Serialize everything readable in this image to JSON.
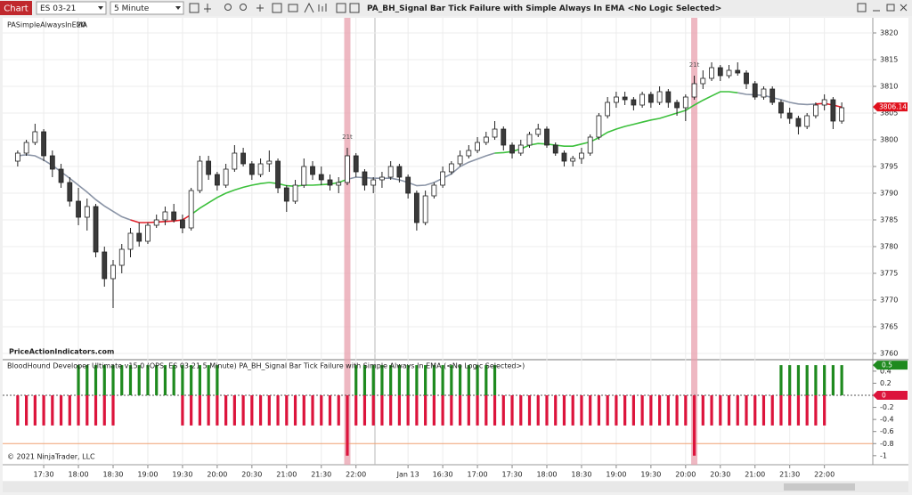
{
  "toolbar": {
    "button": "Chart",
    "instrument": "ES 03-21",
    "interval": "5 Minute",
    "chart_title": "PA_BH_Signal Bar Tick Failure with Simple Always In EMA  <No Logic Selected>"
  },
  "x_axis": {
    "xlim": [
      -0.5,
      95.5
    ],
    "xticks": [
      {
        "value": 3,
        "label": "17:30"
      },
      {
        "value": 7,
        "label": "18:00"
      },
      {
        "value": 11,
        "label": "18:30"
      },
      {
        "value": 15,
        "label": "19:00"
      },
      {
        "value": 19,
        "label": "19:30"
      },
      {
        "value": 23,
        "label": "20:00"
      },
      {
        "value": 27,
        "label": "20:30"
      },
      {
        "value": 31,
        "label": "21:00"
      },
      {
        "value": 35,
        "label": "21:30"
      },
      {
        "value": 39,
        "label": "22:00"
      },
      {
        "value": 45,
        "label": "Jan 13"
      },
      {
        "value": 49,
        "label": "16:30"
      },
      {
        "value": 53,
        "label": "17:00"
      },
      {
        "value": 57,
        "label": "17:30"
      },
      {
        "value": 61,
        "label": "18:00"
      },
      {
        "value": 65,
        "label": "18:30"
      },
      {
        "value": 69,
        "label": "19:00"
      },
      {
        "value": 73,
        "label": "19:30"
      },
      {
        "value": 77,
        "label": "20:00"
      },
      {
        "value": 81,
        "label": "20:30"
      },
      {
        "value": 85,
        "label": "21:00"
      },
      {
        "value": 89,
        "label": "21:30"
      },
      {
        "value": 93,
        "label": "22:00"
      }
    ]
  },
  "chart_data": [
    {
      "type": "candlestick",
      "indicator": "PASimpleAlwaysInEMA",
      "period": "20",
      "watermark": "PriceActionIndicators.com",
      "ylim": [
        3759,
        3822.5
      ],
      "yticks": [
        3760,
        3765,
        3770,
        3775,
        3780,
        3785,
        3790,
        3795,
        3800,
        3805,
        3810,
        3815,
        3820
      ],
      "grid": true,
      "last_price": 3806.14,
      "last_price_color": "#e0101c",
      "up_color": "#ffffff",
      "down_color": "#3a3a3a",
      "candles": [
        [
          3796,
          3798,
          3795,
          3797.5
        ],
        [
          3797.5,
          3800,
          3797,
          3799.5
        ],
        [
          3799.5,
          3803,
          3799,
          3801.5
        ],
        [
          3801.5,
          3802,
          3796,
          3797
        ],
        [
          3797,
          3798,
          3793,
          3794.5
        ],
        [
          3794.5,
          3795.5,
          3791,
          3792
        ],
        [
          3792,
          3793,
          3787.5,
          3788.5
        ],
        [
          3788.5,
          3791,
          3784,
          3785.5
        ],
        [
          3785.5,
          3789,
          3783,
          3787.5
        ],
        [
          3787.5,
          3788,
          3778,
          3779
        ],
        [
          3779,
          3780,
          3772.5,
          3774
        ],
        [
          3774,
          3777.5,
          3768.5,
          3776.5
        ],
        [
          3776.5,
          3780.5,
          3775,
          3779.5
        ],
        [
          3779.5,
          3783.5,
          3778,
          3782.5
        ],
        [
          3782.5,
          3784.5,
          3780,
          3781
        ],
        [
          3781,
          3784.5,
          3780.5,
          3784
        ],
        [
          3784,
          3786,
          3783.5,
          3785
        ],
        [
          3785,
          3787.5,
          3784,
          3786.5
        ],
        [
          3786.5,
          3788,
          3784.5,
          3785
        ],
        [
          3785,
          3786,
          3782.5,
          3783.5
        ],
        [
          3783.5,
          3791,
          3783,
          3790.5
        ],
        [
          3790.5,
          3797,
          3790,
          3796
        ],
        [
          3796,
          3797,
          3792.5,
          3793.5
        ],
        [
          3793.5,
          3794,
          3790.5,
          3791.5
        ],
        [
          3791.5,
          3795.5,
          3791,
          3794.5
        ],
        [
          3794.5,
          3799,
          3794,
          3797.5
        ],
        [
          3797.5,
          3798.5,
          3795,
          3795.5
        ],
        [
          3795.5,
          3796,
          3792.5,
          3793.5
        ],
        [
          3793.5,
          3796.5,
          3793,
          3795.5
        ],
        [
          3795.5,
          3798,
          3794,
          3796
        ],
        [
          3796,
          3796.5,
          3790,
          3791
        ],
        [
          3791,
          3791.5,
          3786.5,
          3788.5
        ],
        [
          3788.5,
          3792.5,
          3788,
          3791.5
        ],
        [
          3791.5,
          3796.5,
          3791,
          3795
        ],
        [
          3795,
          3796,
          3792.5,
          3793.5
        ],
        [
          3793.5,
          3795,
          3791.5,
          3792.5
        ],
        [
          3792.5,
          3793.5,
          3790.5,
          3791.5
        ],
        [
          3791.5,
          3793,
          3790,
          3792
        ],
        [
          3792,
          3798.5,
          3791.5,
          3797
        ],
        [
          3797,
          3797.5,
          3793,
          3794
        ],
        [
          3794,
          3794.5,
          3790.5,
          3791.5
        ],
        [
          3791.5,
          3793,
          3790,
          3792.5
        ],
        [
          3792.5,
          3794,
          3791,
          3793
        ],
        [
          3793,
          3796,
          3792.5,
          3795
        ],
        [
          3795,
          3795.5,
          3792,
          3793
        ],
        [
          3793,
          3793.5,
          3789,
          3790
        ],
        [
          3790,
          3790.5,
          3783,
          3784.5
        ],
        [
          3784.5,
          3790.5,
          3784,
          3789.5
        ],
        [
          3789.5,
          3792,
          3789,
          3791.5
        ],
        [
          3791.5,
          3795,
          3791,
          3794
        ],
        [
          3794,
          3796,
          3793.5,
          3795.5
        ],
        [
          3795.5,
          3798,
          3795,
          3797
        ],
        [
          3797,
          3799,
          3796.5,
          3798
        ],
        [
          3798,
          3800.5,
          3797.5,
          3799.5
        ],
        [
          3799.5,
          3801.5,
          3799,
          3800.5
        ],
        [
          3800.5,
          3803.5,
          3800,
          3802
        ],
        [
          3802,
          3802.5,
          3798,
          3799
        ],
        [
          3799,
          3799.5,
          3796.5,
          3797.5
        ],
        [
          3797.5,
          3800,
          3797,
          3799
        ],
        [
          3799,
          3801.5,
          3798.5,
          3801
        ],
        [
          3801,
          3803,
          3800.5,
          3802
        ],
        [
          3802,
          3802.5,
          3798.5,
          3799
        ],
        [
          3799,
          3799.5,
          3797,
          3797.5
        ],
        [
          3797.5,
          3798,
          3795,
          3796
        ],
        [
          3796,
          3797,
          3795,
          3796.5
        ],
        [
          3796.5,
          3798.5,
          3795.5,
          3797.5
        ],
        [
          3797.5,
          3801,
          3797,
          3800.5
        ],
        [
          3800.5,
          3805,
          3800,
          3804.5
        ],
        [
          3804.5,
          3808,
          3804,
          3807
        ],
        [
          3807,
          3809,
          3806,
          3808
        ],
        [
          3808,
          3809,
          3806.5,
          3807.5
        ],
        [
          3807.5,
          3808,
          3805.5,
          3806.5
        ],
        [
          3806.5,
          3809,
          3806,
          3808.5
        ],
        [
          3808.5,
          3809,
          3806,
          3807
        ],
        [
          3807,
          3810,
          3806.5,
          3809
        ],
        [
          3809,
          3809.5,
          3806,
          3807
        ],
        [
          3807,
          3807.5,
          3804.5,
          3806
        ],
        [
          3806,
          3808.5,
          3803.5,
          3808
        ],
        [
          3808,
          3812,
          3807.5,
          3810.5
        ],
        [
          3810.5,
          3813,
          3809.5,
          3811.5
        ],
        [
          3811.5,
          3814.5,
          3811,
          3813.5
        ],
        [
          3813.5,
          3814,
          3811,
          3812
        ],
        [
          3812,
          3814,
          3811.5,
          3813
        ],
        [
          3813,
          3814.5,
          3812,
          3812.5
        ],
        [
          3812.5,
          3813,
          3809.5,
          3810.5
        ],
        [
          3810.5,
          3811,
          3807.5,
          3808
        ],
        [
          3808,
          3810,
          3807.5,
          3809.5
        ],
        [
          3809.5,
          3810,
          3806.5,
          3807
        ],
        [
          3807,
          3807.5,
          3804,
          3805
        ],
        [
          3805,
          3806,
          3803,
          3804
        ],
        [
          3804,
          3804.5,
          3801,
          3802.5
        ],
        [
          3802.5,
          3805,
          3802,
          3804.5
        ],
        [
          3804.5,
          3807,
          3804,
          3806.5
        ],
        [
          3806.5,
          3808.5,
          3805.5,
          3807.5
        ],
        [
          3807.5,
          3808,
          3802,
          3803.5
        ],
        [
          3803.5,
          3807,
          3803,
          3806
        ]
      ],
      "ema": [
        3797,
        3797.2,
        3797,
        3796.2,
        3795.2,
        3794,
        3792.8,
        3791.5,
        3790.2,
        3788.8,
        3787.6,
        3786.6,
        3785.6,
        3785,
        3784.5,
        3784.5,
        3784.6,
        3784.7,
        3784.8,
        3785,
        3786,
        3787.2,
        3788.2,
        3789.2,
        3790,
        3790.6,
        3791.1,
        3791.5,
        3791.8,
        3792,
        3791.8,
        3791.4,
        3791.3,
        3791.5,
        3791.5,
        3791.6,
        3791.7,
        3792,
        3792.6,
        3793,
        3792.9,
        3792.8,
        3792.8,
        3792.8,
        3792.5,
        3792,
        3791.4,
        3791.5,
        3792,
        3792.8,
        3793.6,
        3795,
        3795.8,
        3796.4,
        3797,
        3797.5,
        3797.6,
        3797.8,
        3798.3,
        3799,
        3799.3,
        3799.2,
        3799,
        3798.8,
        3798.8,
        3799.2,
        3799.6,
        3800.4,
        3801.4,
        3802,
        3802.5,
        3802.9,
        3803.3,
        3803.7,
        3804,
        3804.5,
        3805,
        3805.5,
        3806.5,
        3807.4,
        3808.2,
        3809,
        3809,
        3808.8,
        3808.5,
        3808.4,
        3808.3,
        3807.9,
        3807.5,
        3807,
        3806.7,
        3806.6,
        3806.7,
        3806.8,
        3806.5,
        3806.1
      ],
      "ema_segments": [
        {
          "from": 0,
          "to": 13,
          "color": "#8a94a6"
        },
        {
          "from": 13,
          "to": 20,
          "color": "#e0202a"
        },
        {
          "from": 20,
          "to": 38,
          "color": "#3cc03c"
        },
        {
          "from": 38,
          "to": 55,
          "color": "#8a94a6"
        },
        {
          "from": 55,
          "to": 83,
          "color": "#3cc03c"
        },
        {
          "from": 83,
          "to": 92,
          "color": "#8a94a6"
        },
        {
          "from": 92,
          "to": 95,
          "color": "#e0202a"
        }
      ],
      "signal_bars": [
        38,
        78
      ],
      "signal_labels": [
        "21t",
        "21t"
      ],
      "signal_color": "#e8a0ae"
    },
    {
      "type": "bar",
      "title": "BloodHound Developer Ultimate v15.0 (OPS, ES 03-21 5 Minute) PA_BH_Signal Bar Tick Failure with Simple Always In EMA  (<No Logic Selected>)",
      "copyright": "© 2021 NinjaTrader, LLC",
      "ylim": [
        -1.15,
        0.59
      ],
      "yticks": [
        0.4,
        0.2,
        0,
        -0.2,
        -0.4,
        -0.6,
        -0.8,
        -1
      ],
      "reference_line": -0.8,
      "series": [
        {
          "color": "#1f8a1f",
          "last": 0.5,
          "values": [
            null,
            null,
            null,
            null,
            null,
            null,
            null,
            0.5,
            0.5,
            0.5,
            0.5,
            0.5,
            0.5,
            0.5,
            0.5,
            0.5,
            0.5,
            0.5,
            0.5,
            0.5,
            0.5,
            0.5,
            0.5,
            0.5,
            null,
            null,
            null,
            null,
            null,
            null,
            null,
            null,
            null,
            null,
            null,
            null,
            null,
            null,
            null,
            0.5,
            0.5,
            0.5,
            0.5,
            0.5,
            0.5,
            0.5,
            0.5,
            0.5,
            0.5,
            0.5,
            0.5,
            0.5,
            0.5,
            0.5,
            0.5,
            0.5,
            null,
            null,
            null,
            null,
            null,
            null,
            null,
            null,
            null,
            null,
            null,
            null,
            null,
            null,
            null,
            null,
            null,
            null,
            null,
            null,
            null,
            null,
            null,
            null,
            null,
            null,
            null,
            null,
            null,
            null,
            null,
            null,
            0.5,
            0.5,
            0.5,
            0.5,
            0.5,
            0.5,
            0.5,
            0.5
          ]
        },
        {
          "color": "#dc143c",
          "last": 0,
          "values": [
            -0.5,
            -0.5,
            -0.5,
            -0.5,
            -0.5,
            -0.5,
            -0.5,
            -0.5,
            -0.5,
            -0.5,
            -0.5,
            -0.5,
            null,
            null,
            null,
            null,
            null,
            null,
            null,
            -0.5,
            -0.5,
            -0.5,
            -0.5,
            -0.5,
            -0.5,
            -0.5,
            -0.5,
            -0.5,
            -0.5,
            -0.5,
            -0.5,
            -0.5,
            -0.5,
            -0.5,
            -0.5,
            -0.5,
            -0.5,
            -0.5,
            -1,
            -0.5,
            -0.5,
            -0.5,
            -0.5,
            -0.5,
            -0.5,
            -0.5,
            -0.5,
            -0.5,
            -0.5,
            -0.5,
            -0.5,
            -0.5,
            -0.5,
            -0.5,
            -0.5,
            -0.5,
            -0.5,
            -0.5,
            -0.5,
            -0.5,
            -0.5,
            -0.5,
            -0.5,
            -0.5,
            -0.5,
            -0.5,
            -0.5,
            -0.5,
            -0.5,
            -0.5,
            -0.5,
            -0.5,
            -0.5,
            -0.5,
            -0.5,
            -0.5,
            -0.5,
            -0.5,
            -1,
            -0.5,
            -0.5,
            -0.5,
            -0.5,
            -0.5,
            -0.5,
            -0.5,
            -0.5,
            -0.5,
            -0.5,
            -0.5,
            -0.5,
            -0.5,
            -0.5,
            -0.5,
            null,
            null
          ]
        }
      ]
    }
  ]
}
